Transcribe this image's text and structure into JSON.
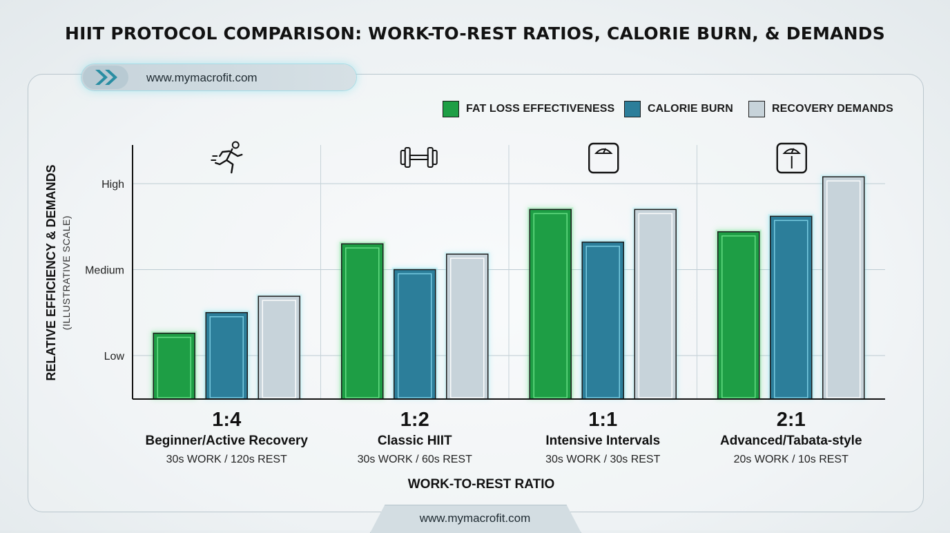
{
  "title": "HIIT PROTOCOL COMPARISON: WORK-TO-REST RATIOS, CALORIE BURN, & DEMANDS",
  "website": "www.mymacrofit.com",
  "footer_website": "www.mymacrofit.com",
  "icons": [
    "running-person-icon",
    "dumbbell-icon",
    "scale-icon",
    "scale-icon"
  ],
  "colors": {
    "fat_loss": "#1e9e45",
    "calorie_burn": "#2c7e9a",
    "recovery": "#c7d3da",
    "accent_glow": "#8fe3ee"
  },
  "chart_data": {
    "type": "bar",
    "ylabel": "RELATIVE EFFICIENCY & DEMANDS",
    "ylabel_sub": "(ILLUSTRATIVE SCALE)",
    "xlabel": "WORK-TO-REST RATIO",
    "yticks": [
      {
        "label": "Low",
        "value": 1
      },
      {
        "label": "Medium",
        "value": 2
      },
      {
        "label": "High",
        "value": 3
      }
    ],
    "ylim": [
      0.5,
      3.5
    ],
    "grid": true,
    "legend_position": "top-right",
    "categories": [
      {
        "ratio": "1:4",
        "name": "Beginner/Active Recovery",
        "detail": "30s WORK / 120s REST",
        "icon": "running-person-icon"
      },
      {
        "ratio": "1:2",
        "name": "Classic HIIT",
        "detail": "30s WORK / 60s REST",
        "icon": "dumbbell-icon"
      },
      {
        "ratio": "1:1",
        "name": "Intensive Intervals",
        "detail": "30s WORK / 30s REST",
        "icon": "scale-icon"
      },
      {
        "ratio": "2:1",
        "name": "Advanced/Tabata-style",
        "detail": "20s WORK / 10s REST",
        "icon": "scale-icon"
      }
    ],
    "series": [
      {
        "name": "FAT LOSS EFFECTIVENESS",
        "color": "#1e9e45",
        "values": [
          1.26,
          2.3,
          2.7,
          2.44
        ]
      },
      {
        "name": "CALORIE BURN",
        "color": "#2c7e9a",
        "values": [
          1.5,
          2.0,
          2.32,
          2.62
        ]
      },
      {
        "name": "RECOVERY DEMANDS",
        "color": "#c7d3da",
        "values": [
          1.69,
          2.18,
          2.7,
          3.08
        ]
      }
    ]
  }
}
